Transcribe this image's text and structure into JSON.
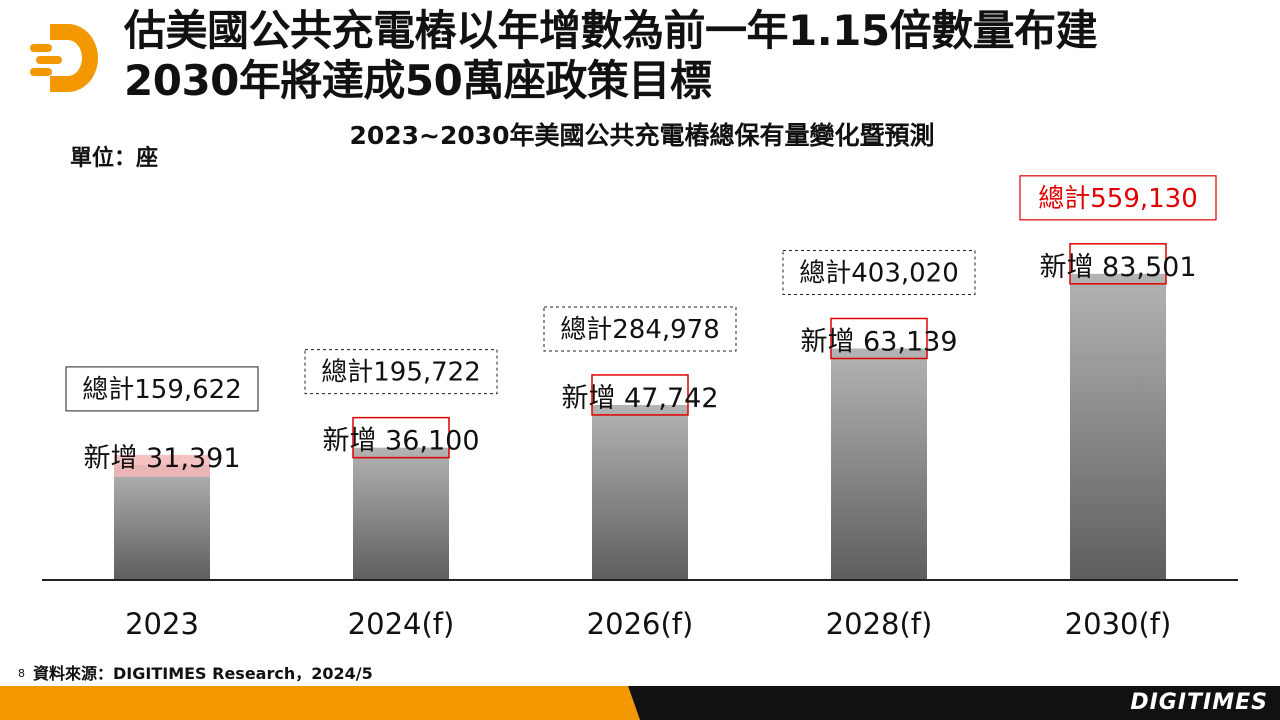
{
  "header": {
    "title_line1": "估美國公共充電樁以年增數為前一年1.15倍數量布建",
    "title_line2": "2030年將達成50萬座政策目標",
    "logo_icon": "digitimes-d-logo-icon"
  },
  "unit_label": "單位：座",
  "source": {
    "page_number": "8",
    "text": "資料來源：DIGITIMES Research，2024/5"
  },
  "brand": "DIGITIMES",
  "colors": {
    "accent_orange": "#F39800",
    "highlight_red": "#E00000",
    "bar_top": "#B4B4B4",
    "bar_bottom": "#5E5E5E",
    "footer_dark": "#111111"
  },
  "chart_data": {
    "type": "bar",
    "title": "2023~2030年美國公共充電樁總保有量變化暨預測",
    "categories": [
      "2023",
      "2024(f)",
      "2026(f)",
      "2028(f)",
      "2030(f)"
    ],
    "series": [
      {
        "values": [
          31391,
          36100,
          47742,
          63139,
          83501
        ],
        "labels": [
          "新增 31,391",
          "新增 36,100",
          "新增 47,742",
          "新增 63,139",
          "新增 83,501"
        ]
      }
    ],
    "totals": [
      159622,
      195722,
      284978,
      403020,
      559130
    ],
    "total_labels": [
      "總計159,622",
      "總計195,722",
      "總計284,978",
      "總計403,020",
      "總計559,130"
    ],
    "ylim": [
      0,
      90000
    ],
    "grid": false,
    "legend": "none"
  }
}
